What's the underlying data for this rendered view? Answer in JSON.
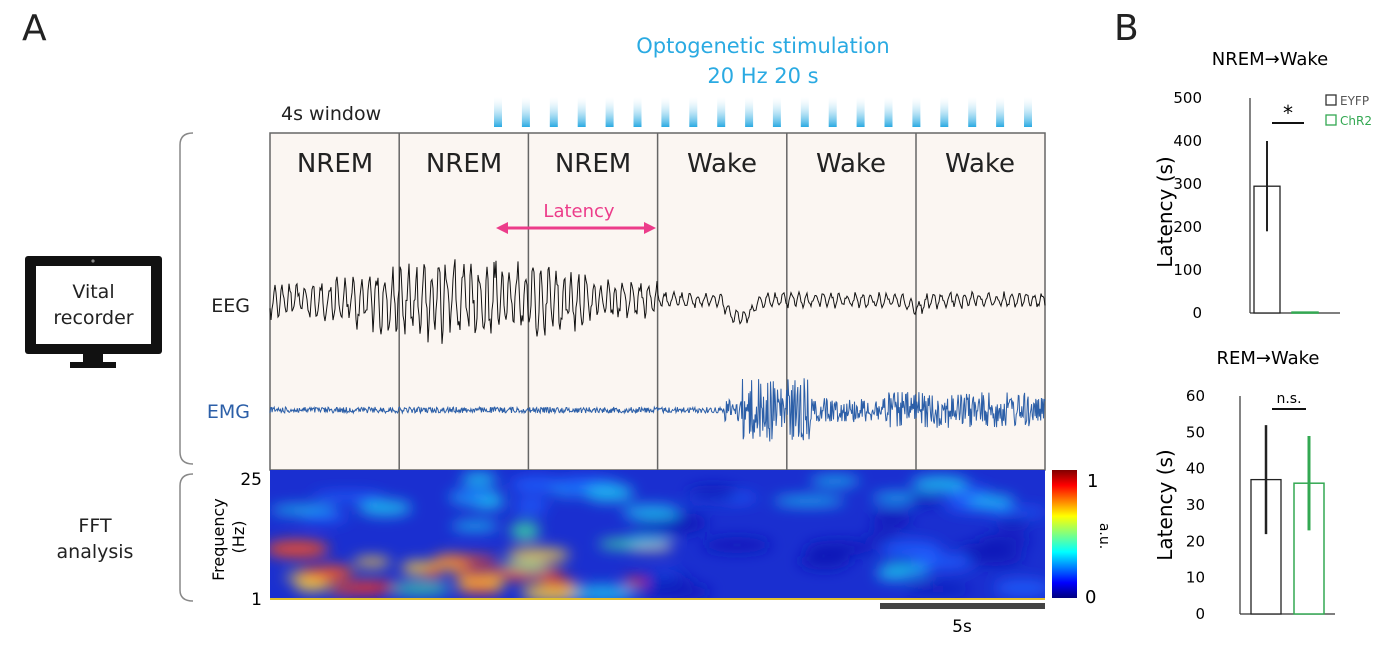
{
  "panels": {
    "a": "A",
    "b": "B"
  },
  "stim": {
    "line1": "Optogenetic stimulation",
    "line2": "20 Hz 20 s",
    "pulse_count": 20
  },
  "window_label": "4s window",
  "epochs": [
    "NREM",
    "NREM",
    "NREM",
    "Wake",
    "Wake",
    "Wake"
  ],
  "latency_label": "Latency",
  "traces": {
    "eeg": "EEG",
    "emg": "EMG"
  },
  "device": {
    "line1": "Vital",
    "line2": "recorder"
  },
  "fft": {
    "line1": "FFT",
    "line2": "analysis",
    "ylabel": "Frequency (Hz)",
    "y_top": "25",
    "y_bottom": "1"
  },
  "colorbar": {
    "max": "1",
    "min": "0",
    "label": "a.u."
  },
  "scalebar": "5s",
  "colors": {
    "stim": "#2aaae2",
    "latency": "#ec3c8a",
    "emg": "#2c5fa8",
    "chr2": "#33a852",
    "epoch_bg": "#fbf6f2"
  },
  "chart_data": [
    {
      "type": "bar",
      "title": "NREM→Wake",
      "categories": [
        "EYFP",
        "ChR2"
      ],
      "values": [
        295,
        2
      ],
      "errors": [
        105,
        1
      ],
      "ylabel": "Latency (s)",
      "ylim": [
        0,
        500
      ],
      "yticks": [
        "0",
        "100",
        "200",
        "300",
        "400",
        "500"
      ],
      "legend": [
        "EYFP",
        "ChR2"
      ],
      "legend_position": "top-right",
      "significance": "*"
    },
    {
      "type": "bar",
      "title": "REM→Wake",
      "categories": [
        "EYFP",
        "ChR2"
      ],
      "values": [
        37,
        36
      ],
      "errors": [
        15,
        13
      ],
      "ylabel": "Latency (s)",
      "ylim": [
        0,
        60
      ],
      "yticks": [
        "0",
        "10",
        "20",
        "30",
        "40",
        "50",
        "60"
      ],
      "significance": "n.s."
    }
  ]
}
